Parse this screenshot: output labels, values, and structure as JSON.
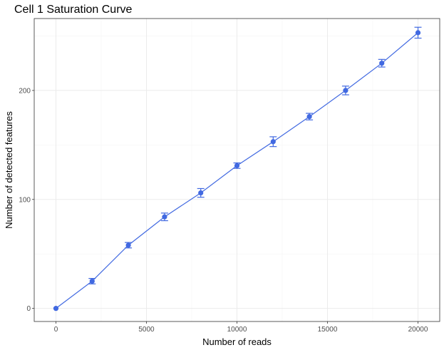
{
  "chart_data": {
    "type": "line",
    "title": "Cell 1 Saturation Curve",
    "xlabel": "Number of reads",
    "ylabel": "Number of detected features",
    "xlim": [
      -1200,
      21200
    ],
    "ylim": [
      -12,
      266
    ],
    "x_ticks": [
      0,
      5000,
      10000,
      15000,
      20000
    ],
    "x_tick_labels": [
      "0",
      "5000",
      "10000",
      "15000",
      "20000"
    ],
    "y_ticks": [
      0,
      100,
      200
    ],
    "y_tick_labels": [
      "0",
      "100",
      "200"
    ],
    "grid": true,
    "series": [
      {
        "x": [
          0,
          2000,
          4000,
          6000,
          8000,
          10000,
          12000,
          14000,
          16000,
          18000,
          20000
        ],
        "y": [
          0,
          25,
          58,
          84,
          106,
          131,
          153,
          176,
          200,
          225,
          253
        ],
        "error": [
          0,
          2.5,
          2.5,
          3.5,
          4,
          2.5,
          4.5,
          3,
          4,
          3.5,
          5
        ]
      }
    ],
    "colors": {
      "line": "#4169E1",
      "point": "#4169E1",
      "panel_border": "#333333",
      "grid_major": "#EBEBEB",
      "grid_minor": "#F5F5F5"
    }
  }
}
